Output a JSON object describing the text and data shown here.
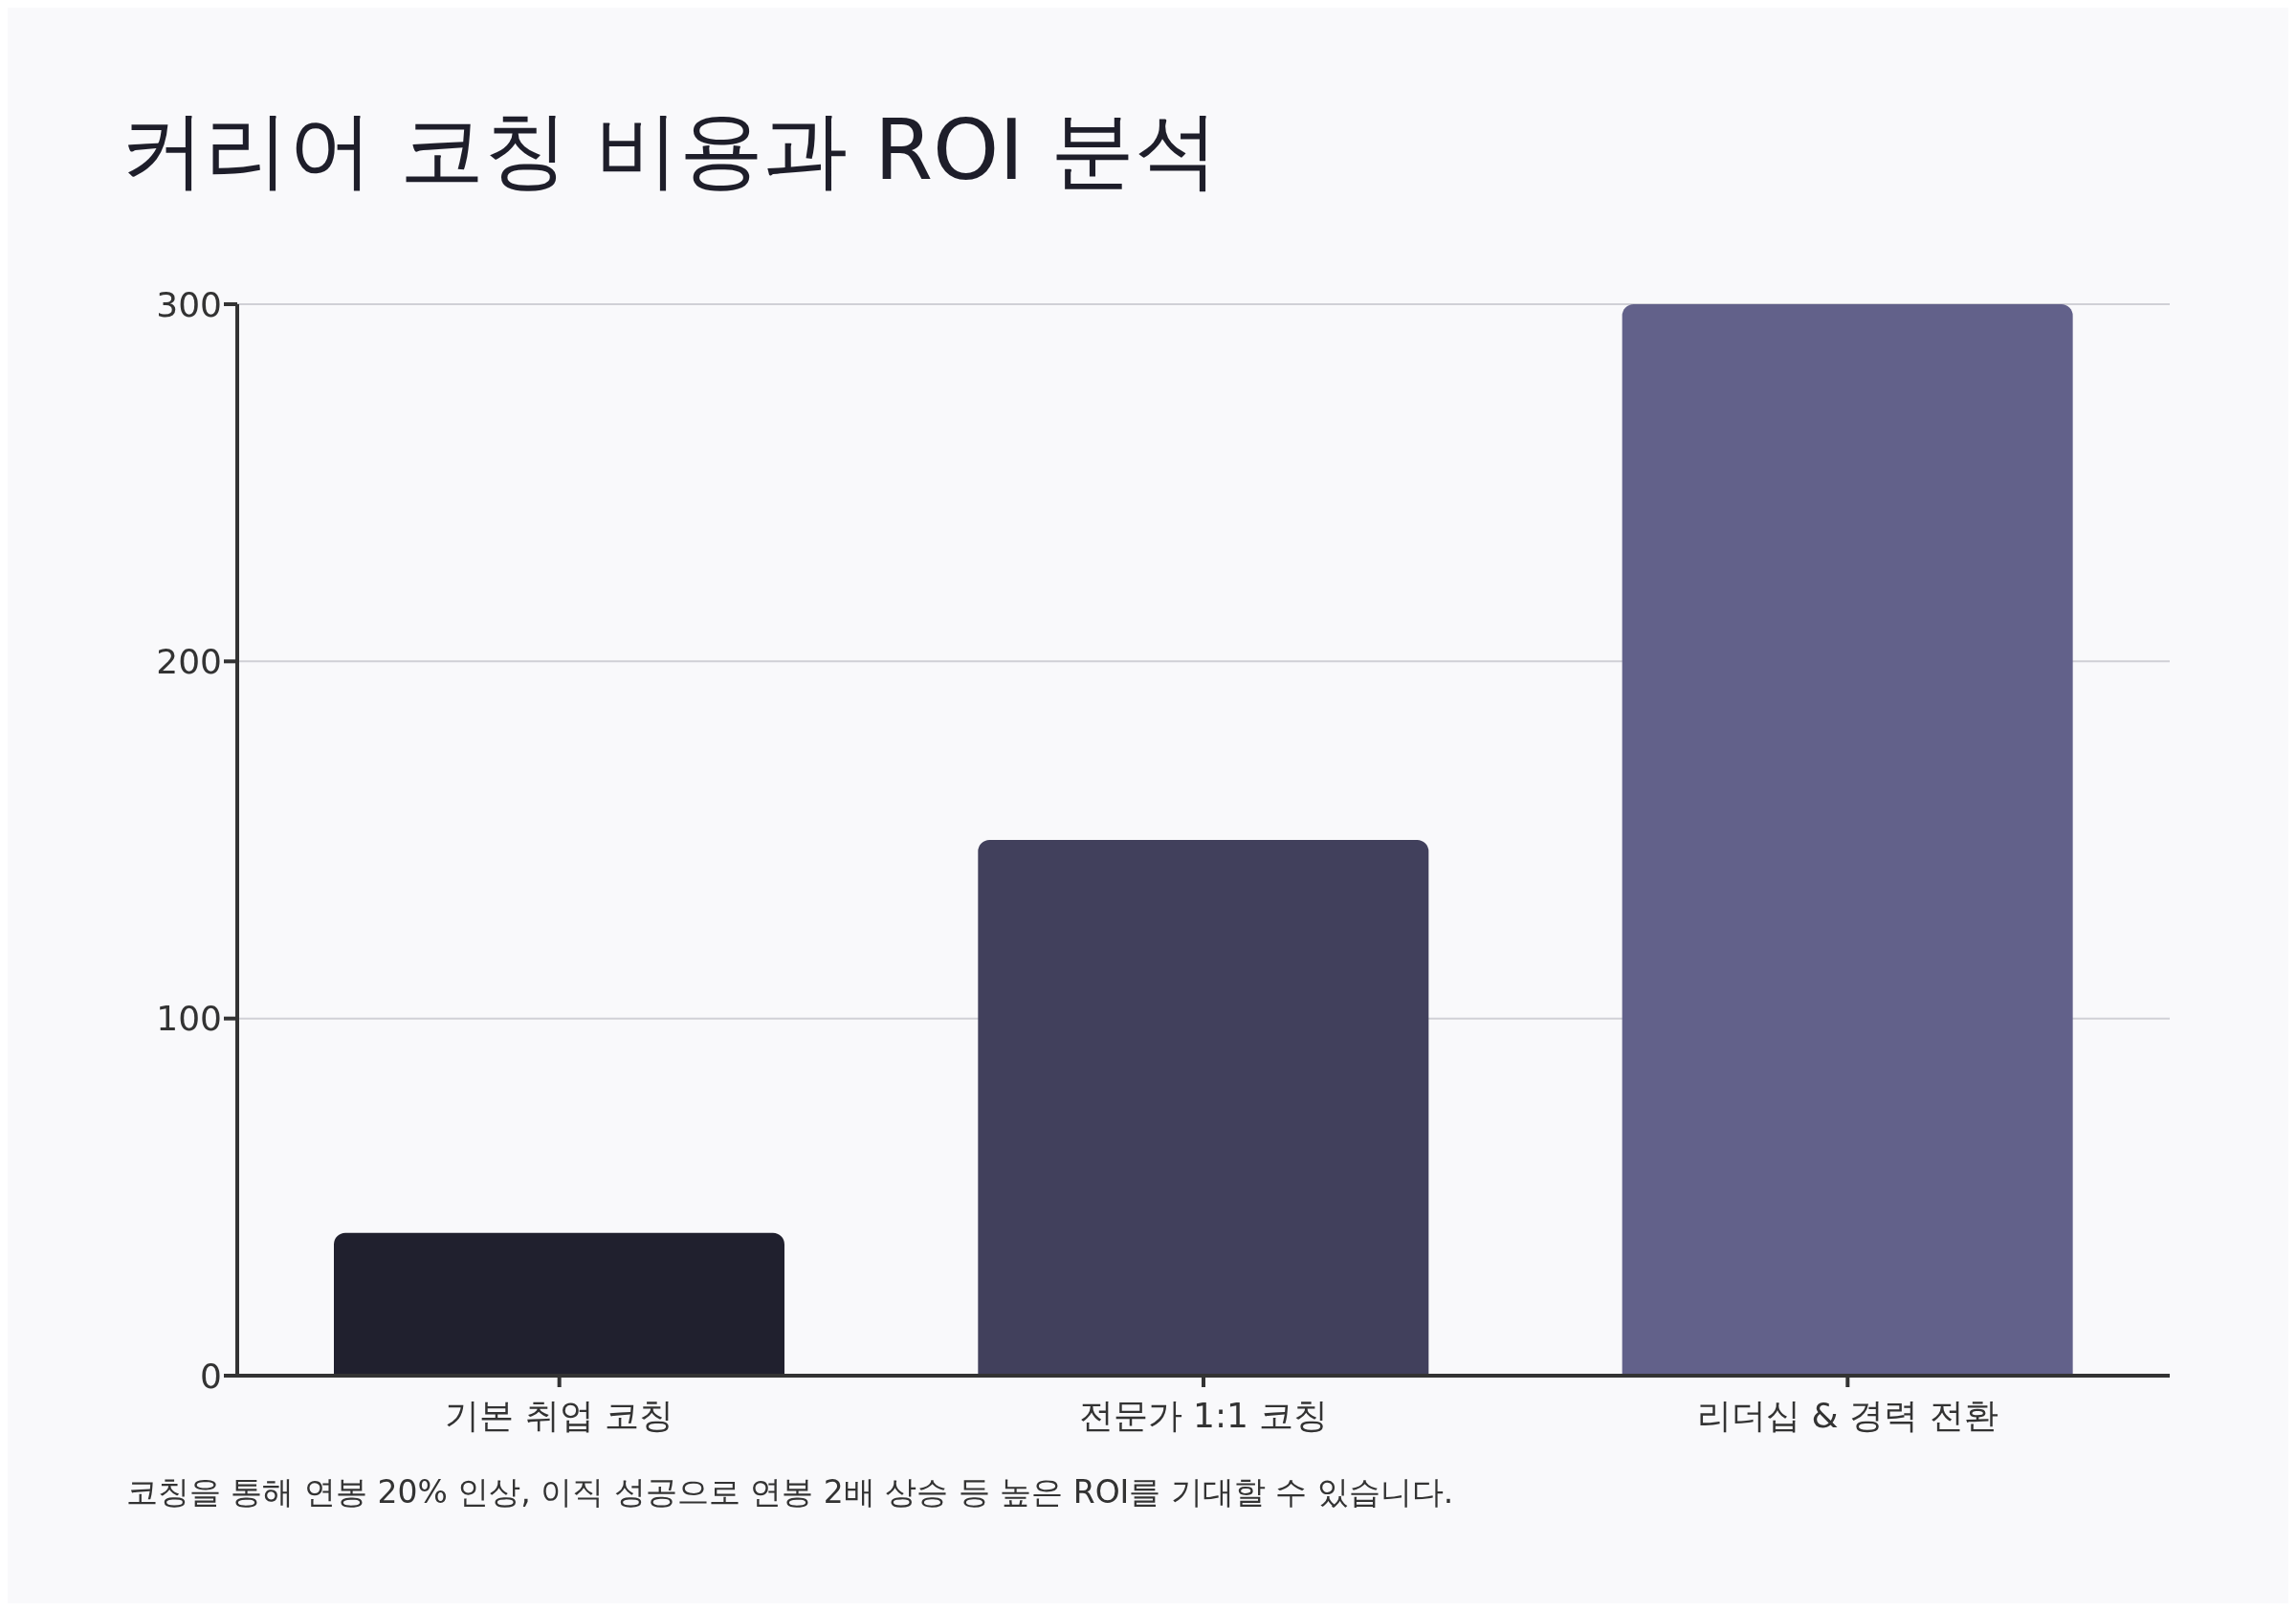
{
  "chart_data": {
    "type": "bar",
    "title": "커리어 코칭 비용과 ROI 분석",
    "categories": [
      "기본 취업 코칭",
      "전문가 1:1 코칭",
      "리더십 & 경력 전환"
    ],
    "values": [
      40,
      150,
      300
    ],
    "colors": [
      "#20202e",
      "#41405c",
      "#62618a"
    ],
    "ylim": [
      0,
      300
    ],
    "yticks": [
      0,
      100,
      200,
      300
    ],
    "grid": "y",
    "annotations": [
      "코칭을 통해 연봉 20% 인상, 이직 성공으로 연봉 2배 상승 등 높은 ROI를 기대할 수 있습니다."
    ]
  }
}
